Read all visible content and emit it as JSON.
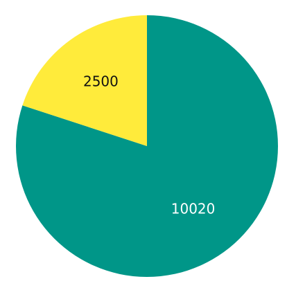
{
  "chart_data": {
    "type": "pie",
    "title": "",
    "slices": [
      {
        "label": "",
        "value": 10020,
        "value_label": "10020",
        "color": "#009688",
        "text_color": "#ffffff"
      },
      {
        "label": "",
        "value": 2500,
        "value_label": "2500",
        "color": "#ffeb3b",
        "text_color": "#111111"
      }
    ],
    "start_angle_deg": 0,
    "direction": "clockwise",
    "legend": "none"
  }
}
